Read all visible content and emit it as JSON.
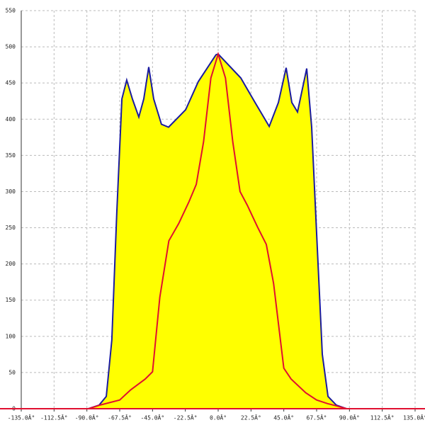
{
  "chart_data": {
    "type": "line",
    "xlim": [
      -135,
      135
    ],
    "ylim": [
      0,
      550
    ],
    "xticks": [
      {
        "value": -135,
        "label": "-135.0Â°"
      },
      {
        "value": -112.5,
        "label": "-112.5Â°"
      },
      {
        "value": -90,
        "label": "-90.0Â°"
      },
      {
        "value": -67.5,
        "label": "-67.5Â°"
      },
      {
        "value": -45,
        "label": "-45.0Â°"
      },
      {
        "value": -22.5,
        "label": "-22.5Â°"
      },
      {
        "value": 0,
        "label": "0.0Â°"
      },
      {
        "value": 22.5,
        "label": "22.5Â°"
      },
      {
        "value": 45,
        "label": "45.0Â°"
      },
      {
        "value": 67.5,
        "label": "67.5Â°"
      },
      {
        "value": 90,
        "label": "90.0Â°"
      },
      {
        "value": 112.5,
        "label": "112.5Â°"
      },
      {
        "value": 135,
        "label": "135.0Â°"
      }
    ],
    "yticks": [
      0,
      50,
      100,
      150,
      200,
      250,
      300,
      350,
      400,
      450,
      500,
      550
    ],
    "grid": true,
    "series": [
      {
        "color": "#1a1aa0",
        "fill": "#ffff00",
        "x": [
          -89,
          -81.6,
          -76.7,
          -72.9,
          -69.5,
          -66,
          -62.7,
          -58.8,
          -54.4,
          -51,
          -47.6,
          -44.2,
          -38.9,
          -34,
          -22.3,
          -13.6,
          -1.5,
          0,
          15.5,
          25.3,
          35,
          41.3,
          46.6,
          50.5,
          54.4,
          60.7,
          64.1,
          67.5,
          71.4,
          75.3,
          81,
          88
        ],
        "values": [
          0,
          5,
          17,
          95,
          271,
          428,
          454,
          428,
          403,
          428,
          472,
          428,
          393,
          389,
          413,
          452,
          489,
          490,
          457,
          423,
          390,
          423,
          471,
          423,
          410,
          470,
          389,
          242,
          75,
          17,
          5,
          0
        ]
      },
      {
        "color": "#e01030",
        "x": [
          -89,
          -81,
          -67.5,
          -60,
          -50,
          -45,
          -40,
          -33.8,
          -27,
          -20,
          -15,
          -10,
          -5,
          0,
          5,
          10,
          15,
          20,
          27,
          33,
          38,
          45,
          50,
          60,
          67.5,
          75,
          81,
          88
        ],
        "values": [
          0,
          5,
          12,
          26,
          41,
          51,
          154,
          232,
          256,
          286,
          310,
          369,
          457,
          490,
          457,
          369,
          300,
          281,
          251,
          227,
          173,
          56,
          41,
          22,
          12,
          7,
          4,
          0
        ]
      }
    ]
  }
}
